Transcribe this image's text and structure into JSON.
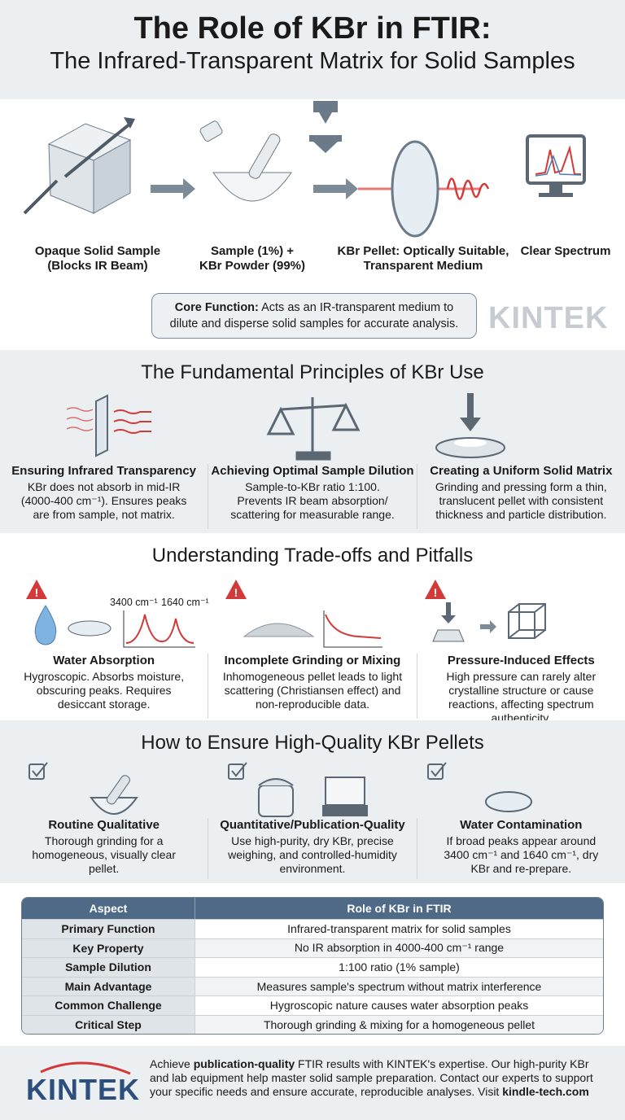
{
  "header": {
    "title": "The Role of KBr in FTIR:",
    "subtitle": "The Infrared-Transparent Matrix for Solid Samples"
  },
  "process": {
    "steps": [
      {
        "label1": "Opaque Solid Sample",
        "label2": "(Blocks IR Beam)"
      },
      {
        "label1": "Sample (1%) +",
        "label2": "KBr Powder (99%)"
      },
      {
        "label1": "KBr Pellet: Optically Suitable,",
        "label2": "Transparent Medium"
      },
      {
        "label1": "Clear Spectrum",
        "label2": ""
      }
    ],
    "core_bold": "Core Function:",
    "core_text": " Acts as an IR-transparent medium to dilute and disperse solid samples for accurate analysis.",
    "watermark": "KINTEK"
  },
  "principles": {
    "title": "The Fundamental Principles of KBr Use",
    "items": [
      {
        "title": "Ensuring Infrared Transparency",
        "desc": "KBr does not absorb in mid-IR (4000-400 cm⁻¹). Ensures peaks are from sample, not matrix."
      },
      {
        "title": "Achieving Optimal Sample Dilution",
        "desc": "Sample-to-KBr ratio 1:100. Prevents IR beam absorption/ scattering for measurable range."
      },
      {
        "title": "Creating a Uniform Solid Matrix",
        "desc": "Grinding and pressing form a thin, translucent pellet with consistent thickness and particle distribution."
      }
    ]
  },
  "pitfalls": {
    "title": "Understanding Trade-offs and Pitfalls",
    "peak1": "3400 cm⁻¹",
    "peak2": "1640 cm⁻¹",
    "items": [
      {
        "title": "Water Absorption",
        "desc": "Hygroscopic. Absorbs moisture, obscuring peaks. Requires desiccant storage."
      },
      {
        "title": "Incomplete Grinding or Mixing",
        "desc": "Inhomogeneous pellet leads to light scattering (Christiansen effect) and non-reproducible data."
      },
      {
        "title": "Pressure-Induced Effects",
        "desc": "High pressure can rarely alter crystalline structure or cause reactions, affecting spectrum authenticity."
      }
    ]
  },
  "quality": {
    "title": "How to Ensure High-Quality KBr Pellets",
    "items": [
      {
        "title": "Routine Qualitative",
        "desc": "Thorough grinding for a homogeneous, visually clear pellet."
      },
      {
        "title": "Quantitative/Publication-Quality",
        "desc": "Use high-purity, dry KBr, precise weighing, and controlled-humidity environment."
      },
      {
        "title": "Water Contamination",
        "desc": "If broad peaks appear around 3400 cm⁻¹ and 1640 cm⁻¹, dry KBr and re-prepare."
      }
    ]
  },
  "table": {
    "headers": [
      "Aspect",
      "Role of KBr in FTIR"
    ],
    "rows": [
      [
        "Primary Function",
        "Infrared-transparent matrix for solid samples"
      ],
      [
        "Key Property",
        "No IR absorption in 4000-400 cm⁻¹ range"
      ],
      [
        "Sample Dilution",
        "1:100 ratio (1% sample)"
      ],
      [
        "Main Advantage",
        "Measures sample's spectrum without matrix interference"
      ],
      [
        "Common Challenge",
        "Hygroscopic nature causes water absorption peaks"
      ],
      [
        "Critical Step",
        "Thorough grinding & mixing for a homogeneous pellet"
      ]
    ]
  },
  "footer": {
    "logo": "KINTEK",
    "t1": "Achieve ",
    "b1": "publication-quality",
    "t2": " FTIR results with KINTEK's expertise. Our high-purity KBr and lab equipment help master solid sample preparation. Contact our experts to support your specific needs and ensure accurate, reproducible analyses. Visit ",
    "link": "kindle-tech.com"
  },
  "colors": {
    "accent_red": "#d23a3a",
    "navy": "#4e6a87",
    "logo_blue": "#2d4f7c"
  }
}
